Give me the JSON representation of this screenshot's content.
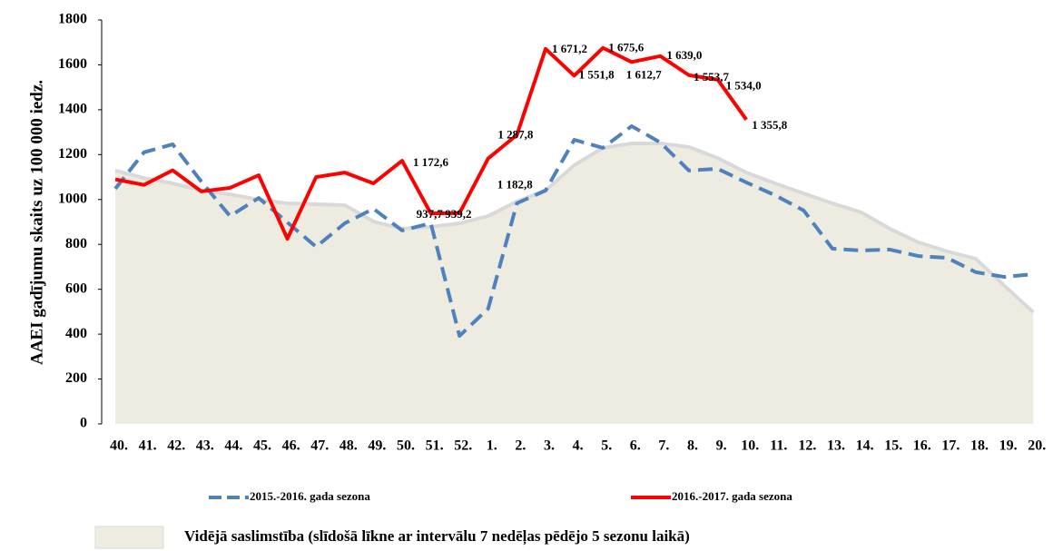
{
  "chart_data": {
    "type": "line",
    "y_label": "AAEI gadījumu skaits uz 100 000 iedz.",
    "categories": [
      "40.",
      "41.",
      "42.",
      "43.",
      "44.",
      "45.",
      "46.",
      "47.",
      "48.",
      "49.",
      "50.",
      "51.",
      "52.",
      "1.",
      "2.",
      "3.",
      "4.",
      "5.",
      "6.",
      "7.",
      "8.",
      "9.",
      "10.",
      "11.",
      "12.",
      "13.",
      "14.",
      "15.",
      "16.",
      "17.",
      "18.",
      "19.",
      "20."
    ],
    "ylim": [
      0,
      1800
    ],
    "yticks": [
      0,
      200,
      400,
      600,
      800,
      1000,
      1200,
      1400,
      1600,
      1800
    ],
    "grid": false,
    "series": [
      {
        "name": "2015.-2016. gada sezona",
        "color": "#4f81bd",
        "style": "dashed",
        "values": [
          1048,
          1210,
          1246,
          1080,
          926,
          1007,
          898,
          789,
          894,
          959,
          862,
          894,
          392,
          514,
          983,
          1040,
          1266,
          1230,
          1327,
          1254,
          1129,
          1137,
          1076,
          1019,
          951,
          781,
          773,
          777,
          748,
          740,
          676,
          655,
          667
        ]
      },
      {
        "name": "2016.-2017. gada sezona",
        "color": "#ff0000",
        "style": "solid",
        "values": [
          1090,
          1065,
          1130,
          1036,
          1052,
          1108,
          825,
          1100,
          1120,
          1072,
          1172.6,
          937.7,
          939.2,
          1182.8,
          1287.8,
          1671.2,
          1551.8,
          1675.6,
          1612.7,
          1639.0,
          1553.7,
          1534.0,
          1355.8,
          null,
          null,
          null,
          null,
          null,
          null,
          null,
          null,
          null,
          null
        ],
        "value_labels": [
          null,
          null,
          null,
          null,
          null,
          null,
          null,
          null,
          null,
          null,
          "1 172,6",
          "937,7",
          "939,2",
          "1 182,8",
          "1 287,8",
          "1 671,2",
          "1 551,8",
          "1 675,6",
          "1 612,7",
          "1 639,0",
          "1 553,7",
          "1 534,0",
          "1 355,8",
          null,
          null,
          null,
          null,
          null,
          null,
          null,
          null,
          null,
          null
        ]
      },
      {
        "name": "Vidējā saslimstība (slīdošā līkne ar intervālu 7 nedēļas pēdējo 5 sezonu laikā)",
        "color": "#eeece1",
        "style": "area",
        "values": [
          1129,
          1096,
          1072,
          1040,
          1023,
          999,
          983,
          979,
          975,
          902,
          870,
          878,
          894,
          926,
          991,
          1040,
          1153,
          1230,
          1250,
          1250,
          1234,
          1185,
          1120,
          1072,
          1027,
          983,
          943,
          870,
          809,
          769,
          736,
          615,
          498
        ]
      }
    ]
  }
}
